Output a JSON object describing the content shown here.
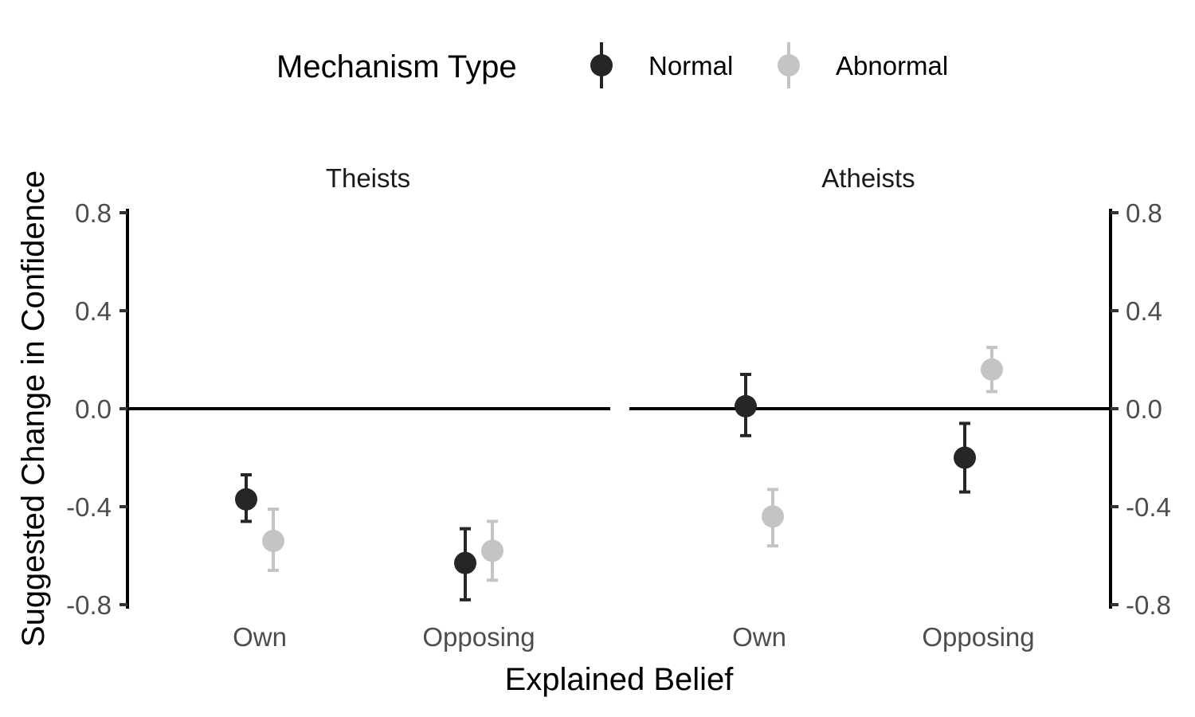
{
  "chart_data": {
    "type": "scatter",
    "subtype": "point-with-error-bars, faceted",
    "legend": {
      "title": "Mechanism Type",
      "position": "top",
      "entries": [
        {
          "key": "normal",
          "label": "Normal",
          "color": "#262626"
        },
        {
          "key": "abnormal",
          "label": "Abnormal",
          "color": "#c4c4c4"
        }
      ]
    },
    "xlabel": "Explained Belief",
    "ylabel": "Suggested Change in Confidence",
    "ylim": [
      -0.8,
      0.8
    ],
    "yticks": [
      "-0.8",
      "-0.4",
      "0.0",
      "0.4",
      "0.8"
    ],
    "categories": [
      "Own",
      "Opposing"
    ],
    "reference_line": 0,
    "grid": false,
    "panels": [
      {
        "title": "Theists",
        "points": [
          {
            "category": "Own",
            "series": "normal",
            "value": -0.37,
            "lower": -0.46,
            "upper": -0.27
          },
          {
            "category": "Own",
            "series": "abnormal",
            "value": -0.54,
            "lower": -0.66,
            "upper": -0.41
          },
          {
            "category": "Opposing",
            "series": "normal",
            "value": -0.63,
            "lower": -0.78,
            "upper": -0.49
          },
          {
            "category": "Opposing",
            "series": "abnormal",
            "value": -0.58,
            "lower": -0.7,
            "upper": -0.46
          }
        ]
      },
      {
        "title": "Atheists",
        "points": [
          {
            "category": "Own",
            "series": "normal",
            "value": 0.01,
            "lower": -0.11,
            "upper": 0.14
          },
          {
            "category": "Own",
            "series": "abnormal",
            "value": -0.44,
            "lower": -0.56,
            "upper": -0.33
          },
          {
            "category": "Opposing",
            "series": "normal",
            "value": -0.2,
            "lower": -0.34,
            "upper": -0.06
          },
          {
            "category": "Opposing",
            "series": "abnormal",
            "value": 0.16,
            "lower": 0.07,
            "upper": 0.25
          }
        ]
      }
    ]
  }
}
